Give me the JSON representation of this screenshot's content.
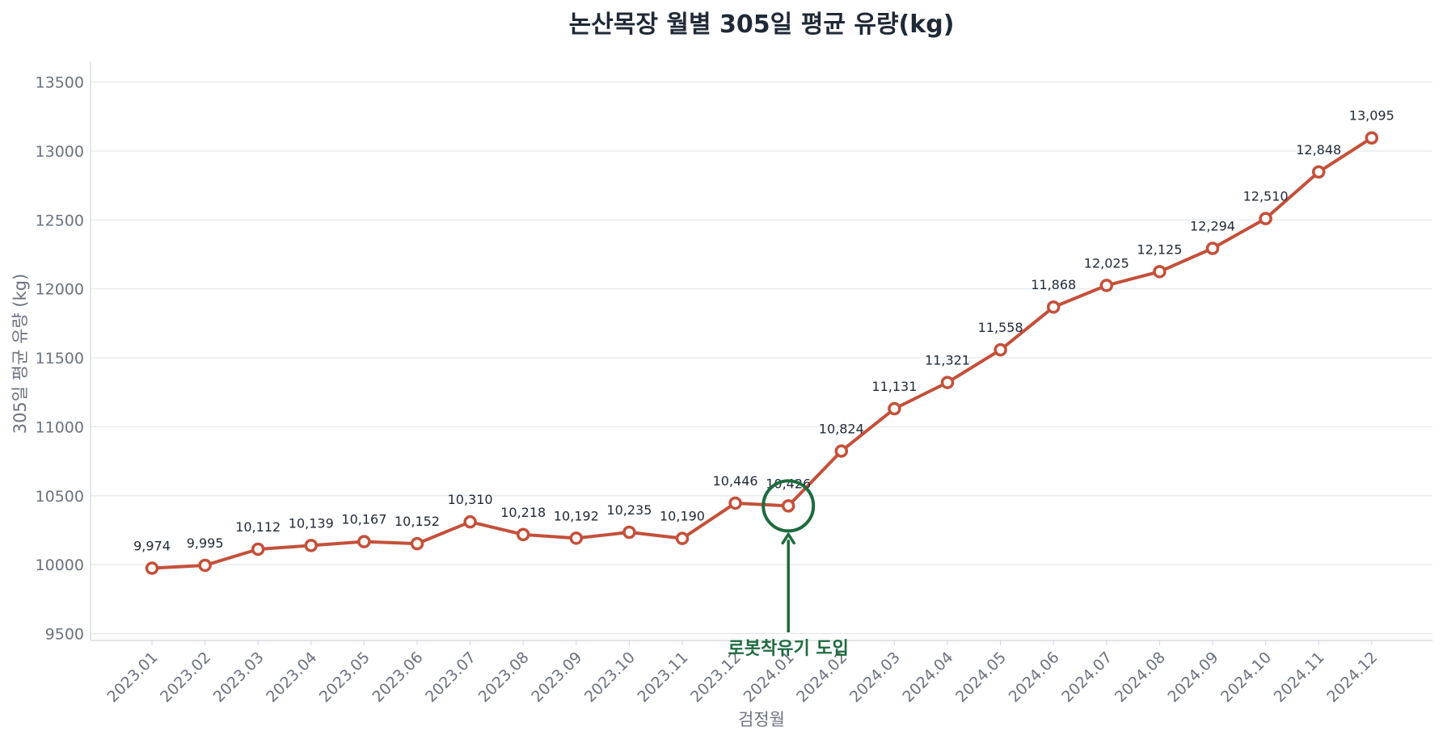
{
  "chart_data": {
    "type": "line",
    "title": "논산목장 월별 305일 평균 유량(kg)",
    "xlabel": "검정월",
    "ylabel": "305일 평균 유량 (kg)",
    "ylim": [
      9450,
      13650
    ],
    "yticks": [
      9500,
      10000,
      10500,
      11000,
      11500,
      12000,
      12500,
      13000,
      13500
    ],
    "grid": true,
    "categories": [
      "2023.01",
      "2023.02",
      "2023.03",
      "2023.04",
      "2023.05",
      "2023.06",
      "2023.07",
      "2023.08",
      "2023.09",
      "2023.10",
      "2023.11",
      "2023.12",
      "2024.01",
      "2024.02",
      "2024.03",
      "2024.04",
      "2024.05",
      "2024.06",
      "2024.07",
      "2024.08",
      "2024.09",
      "2024.10",
      "2024.11",
      "2024.12"
    ],
    "values": [
      9974,
      9995,
      10112,
      10139,
      10167,
      10152,
      10310,
      10218,
      10192,
      10235,
      10190,
      10446,
      10426,
      10824,
      11131,
      11321,
      11558,
      11868,
      12025,
      12125,
      12294,
      12510,
      12848,
      13095
    ],
    "value_labels": [
      "9,974",
      "9,995",
      "10,112",
      "10,139",
      "10,167",
      "10,152",
      "10,310",
      "10,218",
      "10,192",
      "10,235",
      "10,190",
      "10,446",
      "10,426",
      "10,824",
      "11,131",
      "11,321",
      "11,558",
      "11,868",
      "12,025",
      "12,125",
      "12,294",
      "12,510",
      "12,848",
      "13,095"
    ],
    "annotation": {
      "text": "로봇착유기 도입",
      "target_category": "2024.01",
      "target_value": 10426
    },
    "colors": {
      "line": "#c4503a",
      "annotation": "#1e6b3e",
      "grid": "#e5e7eb",
      "axis": "#d1d5db"
    }
  }
}
